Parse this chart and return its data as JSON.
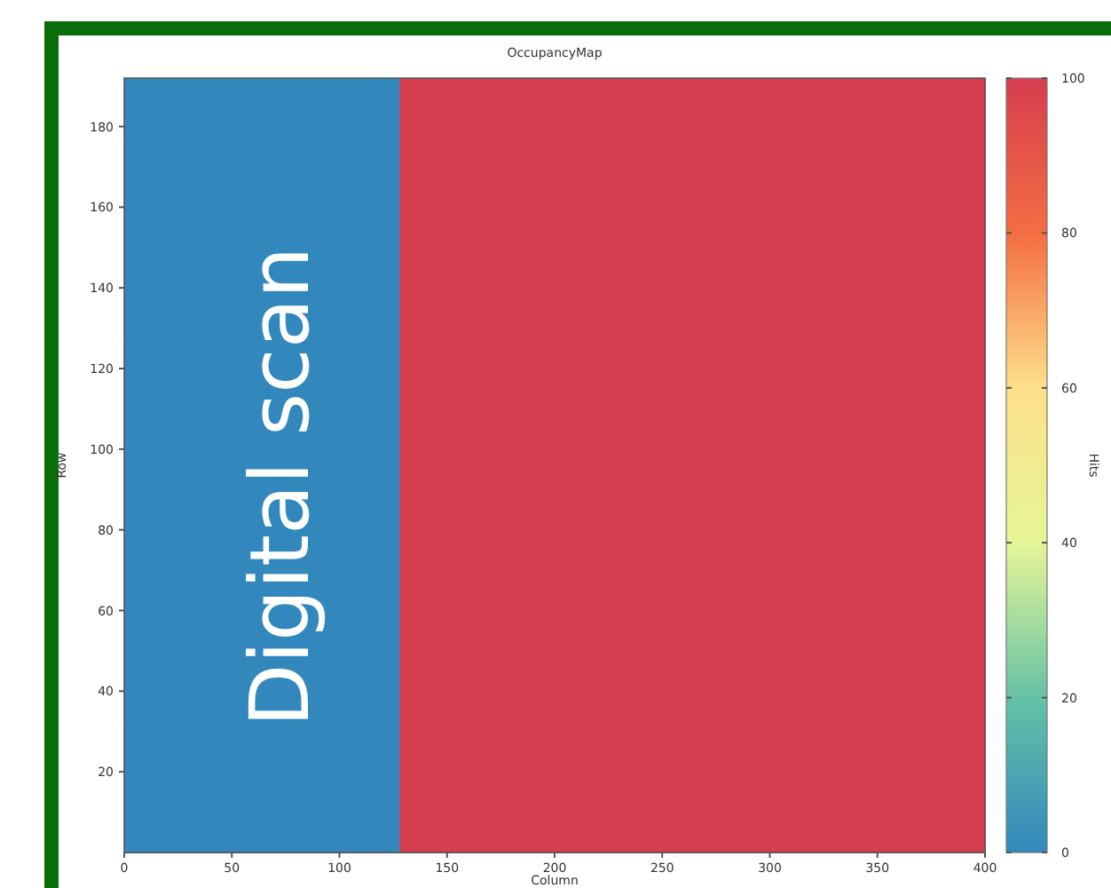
{
  "chart_data": {
    "type": "heatmap",
    "title": "OccupancyMap",
    "xlabel": "Column",
    "ylabel": "Row",
    "clabel": "Hits",
    "x": [
      8,
      24,
      40,
      56,
      72,
      88,
      104,
      120,
      136,
      152,
      168,
      184,
      200,
      216,
      232,
      248,
      264,
      280,
      296,
      312,
      328,
      344,
      360,
      376,
      392
    ],
    "cells": [
      [
        0,
        0,
        0,
        0,
        0,
        0,
        0,
        0,
        100,
        100,
        100,
        100,
        100,
        100,
        100,
        100,
        100,
        100,
        100,
        100,
        100,
        100,
        100,
        100,
        100
      ],
      [
        0,
        0,
        0,
        0,
        0,
        0,
        0,
        0,
        100,
        100,
        100,
        100,
        100,
        100,
        100,
        100,
        100,
        100,
        100,
        100,
        100,
        100,
        100,
        100,
        100
      ],
      [
        0,
        0,
        0,
        0,
        0,
        0,
        0,
        0,
        100,
        100,
        100,
        100,
        100,
        100,
        100,
        100,
        100,
        100,
        100,
        100,
        100,
        100,
        100,
        100,
        100
      ],
      [
        0,
        0,
        0,
        0,
        0,
        0,
        0,
        0,
        100,
        100,
        100,
        100,
        100,
        100,
        100,
        100,
        100,
        100,
        100,
        100,
        100,
        100,
        100,
        100,
        100
      ],
      [
        0,
        0,
        0,
        0,
        0,
        0,
        0,
        0,
        100,
        100,
        100,
        100,
        100,
        100,
        100,
        100,
        100,
        100,
        100,
        100,
        100,
        100,
        100,
        100,
        100
      ],
      [
        0,
        0,
        0,
        0,
        0,
        0,
        0,
        0,
        100,
        100,
        100,
        100,
        100,
        100,
        100,
        100,
        100,
        100,
        100,
        100,
        100,
        100,
        100,
        100,
        100
      ],
      [
        0,
        0,
        0,
        0,
        0,
        0,
        0,
        0,
        100,
        100,
        100,
        100,
        100,
        100,
        100,
        100,
        100,
        100,
        100,
        100,
        100,
        100,
        100,
        100,
        100
      ],
      [
        0,
        0,
        0,
        0,
        0,
        0,
        0,
        0,
        100,
        100,
        100,
        100,
        100,
        100,
        100,
        100,
        100,
        100,
        100,
        100,
        100,
        100,
        100,
        100,
        100
      ],
      [
        0,
        0,
        0,
        0,
        0,
        0,
        0,
        0,
        100,
        100,
        100,
        100,
        100,
        100,
        100,
        100,
        100,
        100,
        100,
        100,
        100,
        100,
        100,
        100,
        100
      ],
      [
        0,
        0,
        0,
        0,
        0,
        0,
        0,
        0,
        100,
        100,
        100,
        100,
        100,
        100,
        100,
        100,
        100,
        100,
        100,
        100,
        100,
        100,
        100,
        100,
        100
      ],
      [
        0,
        0,
        0,
        0,
        0,
        0,
        0,
        0,
        100,
        100,
        100,
        100,
        100,
        100,
        100,
        100,
        100,
        100,
        100,
        100,
        100,
        100,
        100,
        100,
        100
      ],
      [
        0,
        0,
        0,
        0,
        0,
        0,
        0,
        0,
        100,
        100,
        100,
        100,
        100,
        100,
        100,
        100,
        100,
        100,
        100,
        100,
        100,
        100,
        100,
        100,
        100
      ]
    ],
    "xlim": [
      0,
      400
    ],
    "xticks": [
      0,
      50,
      100,
      150,
      200,
      250,
      300,
      350,
      400
    ],
    "ylim": [
      0,
      192
    ],
    "yticks": [
      20,
      40,
      60,
      80,
      100,
      120,
      140,
      160,
      180
    ],
    "clim": [
      0,
      100
    ],
    "cticks": [
      0,
      20,
      40,
      60,
      80,
      100
    ],
    "colors": [
      "#3288bd",
      "#66c2a5",
      "#e6f598",
      "#fee08b",
      "#f46d43",
      "#d53e4f"
    ],
    "annotations": [
      "Digital scan"
    ]
  }
}
